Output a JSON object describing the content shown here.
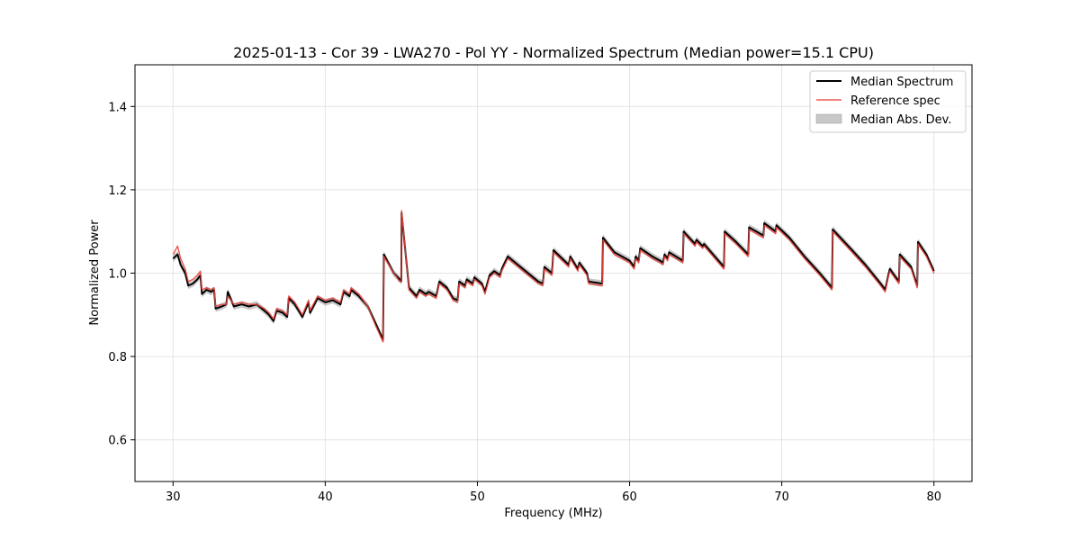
{
  "chart_data": {
    "type": "line",
    "title": "2025-01-13 - Cor 39 - LWA270 - Pol YY - Normalized Spectrum (Median power=15.1 CPU)",
    "xlabel": "Frequency (MHz)",
    "ylabel": "Normalized Power",
    "xlim": [
      27.5,
      82.5
    ],
    "ylim": [
      0.5,
      1.5
    ],
    "xticks": [
      30,
      40,
      50,
      60,
      70,
      80
    ],
    "yticks": [
      0.6,
      0.8,
      1.0,
      1.2,
      1.4
    ],
    "grid": true,
    "legend_position": "top-right",
    "colors": {
      "median": "#000000",
      "reference": "#e8413a",
      "mad": "#b0b0b0"
    },
    "legend": [
      "Median Spectrum",
      "Reference spec",
      "Median Abs. Dev."
    ],
    "series": [
      {
        "name": "Median Spectrum",
        "x": [
          30.0,
          30.3,
          30.5,
          30.8,
          31.0,
          31.3,
          31.6,
          31.8,
          31.9,
          32.2,
          32.5,
          32.7,
          32.8,
          33.2,
          33.5,
          33.6,
          34.0,
          34.5,
          35.0,
          35.5,
          36.0,
          36.3,
          36.6,
          36.8,
          37.2,
          37.5,
          37.6,
          38.0,
          38.5,
          38.9,
          39.0,
          39.5,
          40.0,
          40.5,
          41.0,
          41.2,
          41.6,
          41.7,
          42.2,
          42.8,
          43.3,
          43.8,
          43.85,
          44.5,
          44.9,
          45.0,
          45.02,
          45.5,
          46.0,
          46.2,
          46.6,
          46.8,
          47.3,
          47.5,
          48.0,
          48.4,
          48.7,
          48.8,
          49.2,
          49.3,
          49.7,
          49.8,
          50.3,
          50.5,
          50.8,
          51.1,
          51.5,
          51.6,
          52.0,
          53.0,
          54.0,
          54.3,
          54.4,
          54.9,
          55.0,
          56.0,
          56.1,
          56.6,
          56.7,
          57.2,
          57.3,
          58.2,
          58.25,
          59.0,
          60.0,
          60.3,
          60.4,
          60.6,
          60.7,
          61.5,
          62.0,
          62.2,
          62.3,
          62.5,
          62.6,
          63.5,
          63.55,
          64.3,
          64.4,
          64.8,
          64.9,
          66.2,
          66.25,
          67.0,
          67.8,
          67.85,
          68.8,
          68.85,
          69.6,
          69.65,
          70.5,
          71.5,
          72.5,
          73.3,
          73.35,
          74.5,
          75.5,
          76.5,
          76.8,
          77.0,
          77.1,
          77.7,
          77.75,
          78.5,
          78.9,
          78.95,
          79.5,
          80.0
        ],
        "y": [
          1.035,
          1.045,
          1.02,
          1.0,
          0.97,
          0.975,
          0.985,
          0.995,
          0.95,
          0.96,
          0.955,
          0.96,
          0.915,
          0.92,
          0.925,
          0.955,
          0.92,
          0.925,
          0.92,
          0.925,
          0.91,
          0.9,
          0.885,
          0.91,
          0.905,
          0.895,
          0.94,
          0.925,
          0.895,
          0.93,
          0.905,
          0.94,
          0.93,
          0.935,
          0.925,
          0.955,
          0.945,
          0.96,
          0.945,
          0.92,
          0.88,
          0.84,
          1.045,
          1.0,
          0.985,
          0.98,
          1.145,
          0.965,
          0.945,
          0.96,
          0.95,
          0.955,
          0.945,
          0.98,
          0.965,
          0.94,
          0.935,
          0.98,
          0.97,
          0.985,
          0.975,
          0.99,
          0.975,
          0.955,
          0.995,
          1.005,
          0.995,
          1.01,
          1.04,
          1.01,
          0.98,
          0.975,
          1.015,
          1.0,
          1.055,
          1.02,
          1.04,
          1.01,
          1.025,
          1.0,
          0.98,
          0.975,
          1.085,
          1.05,
          1.03,
          1.015,
          1.04,
          1.03,
          1.06,
          1.04,
          1.03,
          1.025,
          1.045,
          1.035,
          1.05,
          1.03,
          1.1,
          1.07,
          1.08,
          1.065,
          1.07,
          1.015,
          1.1,
          1.075,
          1.045,
          1.11,
          1.09,
          1.12,
          1.1,
          1.115,
          1.085,
          1.04,
          1.0,
          0.965,
          1.105,
          1.06,
          1.02,
          0.975,
          0.96,
          0.995,
          1.01,
          0.98,
          1.045,
          1.015,
          0.97,
          1.075,
          1.045,
          1.005
        ]
      },
      {
        "name": "Reference spec",
        "x": [
          30.0,
          30.3,
          30.5,
          30.8,
          31.0,
          31.3,
          31.6,
          31.8,
          31.9,
          32.2,
          32.5,
          32.7,
          32.8,
          33.2,
          33.5,
          33.6,
          34.0,
          34.5,
          35.0,
          35.5,
          36.0,
          36.3,
          36.6,
          36.8,
          37.2,
          37.5,
          37.6,
          38.0,
          38.5,
          38.9,
          39.0,
          39.5,
          40.0,
          40.5,
          41.0,
          41.2,
          41.6,
          41.7,
          42.2,
          42.8,
          43.3,
          43.8,
          43.85,
          44.5,
          44.9,
          45.0,
          45.02,
          45.5,
          46.0,
          46.2,
          46.6,
          46.8,
          47.3,
          47.5,
          48.0,
          48.4,
          48.7,
          48.8,
          49.2,
          49.3,
          49.7,
          49.8,
          50.3,
          50.5,
          50.8,
          51.1,
          51.5,
          51.6,
          52.0,
          53.0,
          54.0,
          54.3,
          54.4,
          54.9,
          55.0,
          56.0,
          56.1,
          56.6,
          56.7,
          57.2,
          57.3,
          58.2,
          58.25,
          59.0,
          60.0,
          60.3,
          60.4,
          60.6,
          60.7,
          61.5,
          62.0,
          62.2,
          62.3,
          62.5,
          62.6,
          63.5,
          63.55,
          64.3,
          64.4,
          64.8,
          64.9,
          66.2,
          66.25,
          67.0,
          67.8,
          67.85,
          68.8,
          68.85,
          69.6,
          69.65,
          70.5,
          71.5,
          72.5,
          73.3,
          73.35,
          74.5,
          75.5,
          76.5,
          76.8,
          77.0,
          77.1,
          77.7,
          77.75,
          78.5,
          78.9,
          78.95,
          79.5,
          80.0
        ],
        "y": [
          1.045,
          1.065,
          1.035,
          1.01,
          0.98,
          0.985,
          0.995,
          1.005,
          0.96,
          0.965,
          0.96,
          0.965,
          0.92,
          0.925,
          0.925,
          0.945,
          0.925,
          0.93,
          0.925,
          0.925,
          0.915,
          0.905,
          0.89,
          0.915,
          0.91,
          0.9,
          0.945,
          0.93,
          0.9,
          0.935,
          0.91,
          0.945,
          0.935,
          0.94,
          0.93,
          0.96,
          0.95,
          0.965,
          0.95,
          0.92,
          0.875,
          0.835,
          1.04,
          1.0,
          0.98,
          0.98,
          1.15,
          0.96,
          0.94,
          0.955,
          0.945,
          0.95,
          0.94,
          0.975,
          0.96,
          0.935,
          0.93,
          0.975,
          0.965,
          0.98,
          0.97,
          0.985,
          0.97,
          0.95,
          0.99,
          1.0,
          0.99,
          1.005,
          1.035,
          1.005,
          0.975,
          0.97,
          1.01,
          0.995,
          1.05,
          1.015,
          1.035,
          1.005,
          1.02,
          0.995,
          0.975,
          0.97,
          1.08,
          1.045,
          1.025,
          1.01,
          1.035,
          1.025,
          1.055,
          1.035,
          1.025,
          1.02,
          1.04,
          1.03,
          1.045,
          1.025,
          1.095,
          1.065,
          1.075,
          1.06,
          1.065,
          1.01,
          1.095,
          1.07,
          1.04,
          1.105,
          1.085,
          1.115,
          1.095,
          1.11,
          1.08,
          1.035,
          0.995,
          0.96,
          1.1,
          1.055,
          1.015,
          0.97,
          0.955,
          0.99,
          1.005,
          0.975,
          1.04,
          1.01,
          0.965,
          1.07,
          1.04,
          1.0
        ]
      }
    ],
    "mad_width": 0.008
  }
}
